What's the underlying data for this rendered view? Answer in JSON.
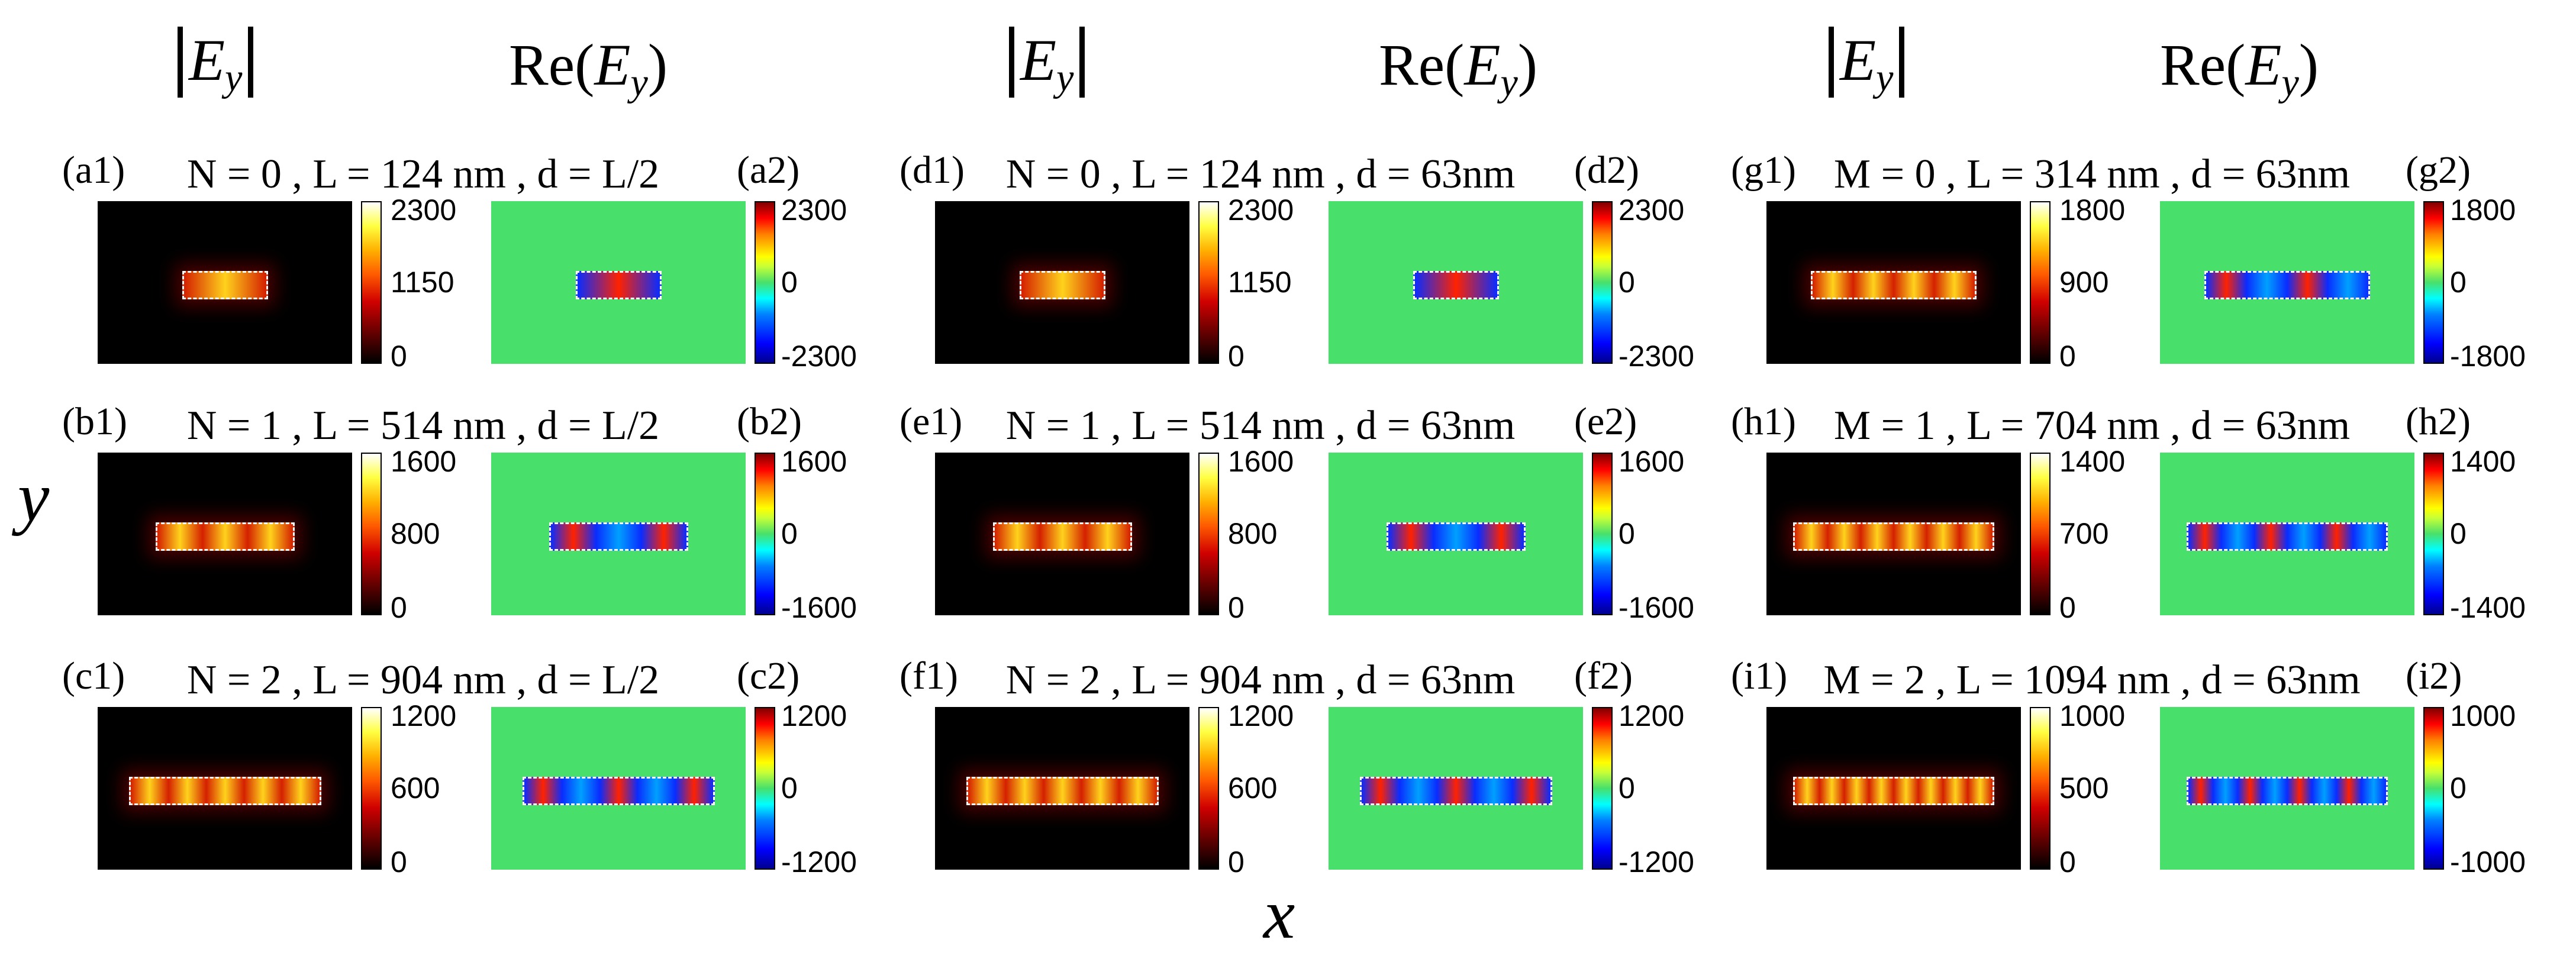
{
  "header": {
    "abs": {
      "letter": "E",
      "sub": "y"
    },
    "re": {
      "prefix": "Re(",
      "letter": "E",
      "sub": "y",
      "suffix": ")"
    }
  },
  "axes": {
    "y": "y",
    "x": "x"
  },
  "colors": {
    "hot_low": "#000000",
    "hot_high": "#ffffff",
    "jet_mid": "#48e06b",
    "jet_high": "#ff0000",
    "jet_low": "#0000ff"
  },
  "panels": [
    {
      "label1": "(a1)",
      "label2": "(a2)",
      "title": "N = 0 , L = 124 nm , d = L/2",
      "abs_ticks": [
        "2300",
        "1150",
        "0"
      ],
      "re_ticks": [
        "2300",
        "0",
        "-2300"
      ],
      "lobes": 1
    },
    {
      "label1": "(b1)",
      "label2": "(b2)",
      "title": "N = 1 , L = 514 nm , d = L/2",
      "abs_ticks": [
        "1600",
        "800",
        "0"
      ],
      "re_ticks": [
        "1600",
        "0",
        "-1600"
      ],
      "lobes": 3
    },
    {
      "label1": "(c1)",
      "label2": "(c2)",
      "title": "N = 2 , L = 904 nm , d = L/2",
      "abs_ticks": [
        "1200",
        "600",
        "0"
      ],
      "re_ticks": [
        "1200",
        "0",
        "-1200"
      ],
      "lobes": 5
    },
    {
      "label1": "(d1)",
      "label2": "(d2)",
      "title": "N = 0 , L = 124 nm , d = 63nm",
      "abs_ticks": [
        "2300",
        "1150",
        "0"
      ],
      "re_ticks": [
        "2300",
        "0",
        "-2300"
      ],
      "lobes": 1
    },
    {
      "label1": "(e1)",
      "label2": "(e2)",
      "title": "N = 1 , L = 514 nm , d = 63nm",
      "abs_ticks": [
        "1600",
        "800",
        "0"
      ],
      "re_ticks": [
        "1600",
        "0",
        "-1600"
      ],
      "lobes": 3
    },
    {
      "label1": "(f1)",
      "label2": "(f2)",
      "title": "N = 2 , L = 904 nm , d = 63nm",
      "abs_ticks": [
        "1200",
        "600",
        "0"
      ],
      "re_ticks": [
        "1200",
        "0",
        "-1200"
      ],
      "lobes": 5
    },
    {
      "label1": "(g1)",
      "label2": "(g2)",
      "title": "M = 0 , L = 314 nm , d = 63nm",
      "abs_ticks": [
        "1800",
        "900",
        "0"
      ],
      "re_ticks": [
        "1800",
        "0",
        "-1800"
      ],
      "lobes": 4
    },
    {
      "label1": "(h1)",
      "label2": "(h2)",
      "title": "M = 1 , L = 704 nm , d = 63nm",
      "abs_ticks": [
        "1400",
        "700",
        "0"
      ],
      "re_ticks": [
        "1400",
        "0",
        "-1400"
      ],
      "lobes": 6
    },
    {
      "label1": "(i1)",
      "label2": "(i2)",
      "title": "M = 2 , L = 1094 nm , d = 63nm",
      "abs_ticks": [
        "1000",
        "500",
        "0"
      ],
      "re_ticks": [
        "1000",
        "0",
        "-1000"
      ],
      "lobes": 8
    }
  ]
}
